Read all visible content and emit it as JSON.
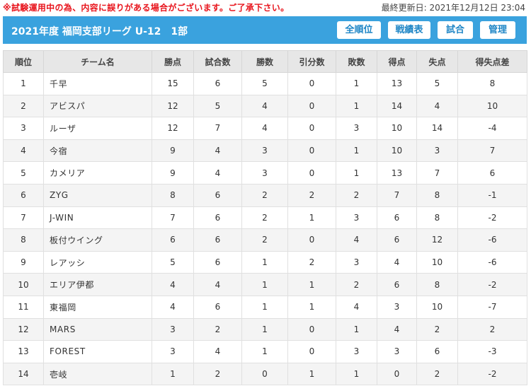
{
  "notice": "※試験運用中の為、内容に誤りがある場合がございます。ご了承下さい。",
  "last_updated": "最終更新日: 2021年12月12日 23:04",
  "header": {
    "title": "2021年度 福岡支部リーグ U-12　1部",
    "nav": [
      "全順位",
      "戦績表",
      "試合",
      "管理"
    ],
    "bg_color": "#3aa2de",
    "button_text_color": "#1f86c6"
  },
  "table": {
    "columns": [
      "順位",
      "チーム名",
      "勝点",
      "試合数",
      "勝数",
      "引分数",
      "敗数",
      "得点",
      "失点",
      "得失点差"
    ],
    "rows": [
      [
        "1",
        "千早",
        "15",
        "6",
        "5",
        "0",
        "1",
        "13",
        "5",
        "8"
      ],
      [
        "2",
        "アビスパ",
        "12",
        "5",
        "4",
        "0",
        "1",
        "14",
        "4",
        "10"
      ],
      [
        "3",
        "ルーザ",
        "12",
        "7",
        "4",
        "0",
        "3",
        "10",
        "14",
        "-4"
      ],
      [
        "4",
        "今宿",
        "9",
        "4",
        "3",
        "0",
        "1",
        "10",
        "3",
        "7"
      ],
      [
        "5",
        "カメリア",
        "9",
        "4",
        "3",
        "0",
        "1",
        "13",
        "7",
        "6"
      ],
      [
        "6",
        "ZYG",
        "8",
        "6",
        "2",
        "2",
        "2",
        "7",
        "8",
        "-1"
      ],
      [
        "7",
        "J-WIN",
        "7",
        "6",
        "2",
        "1",
        "3",
        "6",
        "8",
        "-2"
      ],
      [
        "8",
        "板付ウイング",
        "6",
        "6",
        "2",
        "0",
        "4",
        "6",
        "12",
        "-6"
      ],
      [
        "9",
        "レアッシ",
        "5",
        "6",
        "1",
        "2",
        "3",
        "4",
        "10",
        "-6"
      ],
      [
        "10",
        "エリア伊都",
        "4",
        "4",
        "1",
        "1",
        "2",
        "6",
        "8",
        "-2"
      ],
      [
        "11",
        "東福岡",
        "4",
        "6",
        "1",
        "1",
        "4",
        "3",
        "10",
        "-7"
      ],
      [
        "12",
        "MARS",
        "3",
        "2",
        "1",
        "0",
        "1",
        "4",
        "2",
        "2"
      ],
      [
        "13",
        "FOREST",
        "3",
        "4",
        "1",
        "0",
        "3",
        "3",
        "6",
        "-3"
      ],
      [
        "14",
        "壱岐",
        "1",
        "2",
        "0",
        "1",
        "1",
        "0",
        "2",
        "-2"
      ]
    ]
  }
}
